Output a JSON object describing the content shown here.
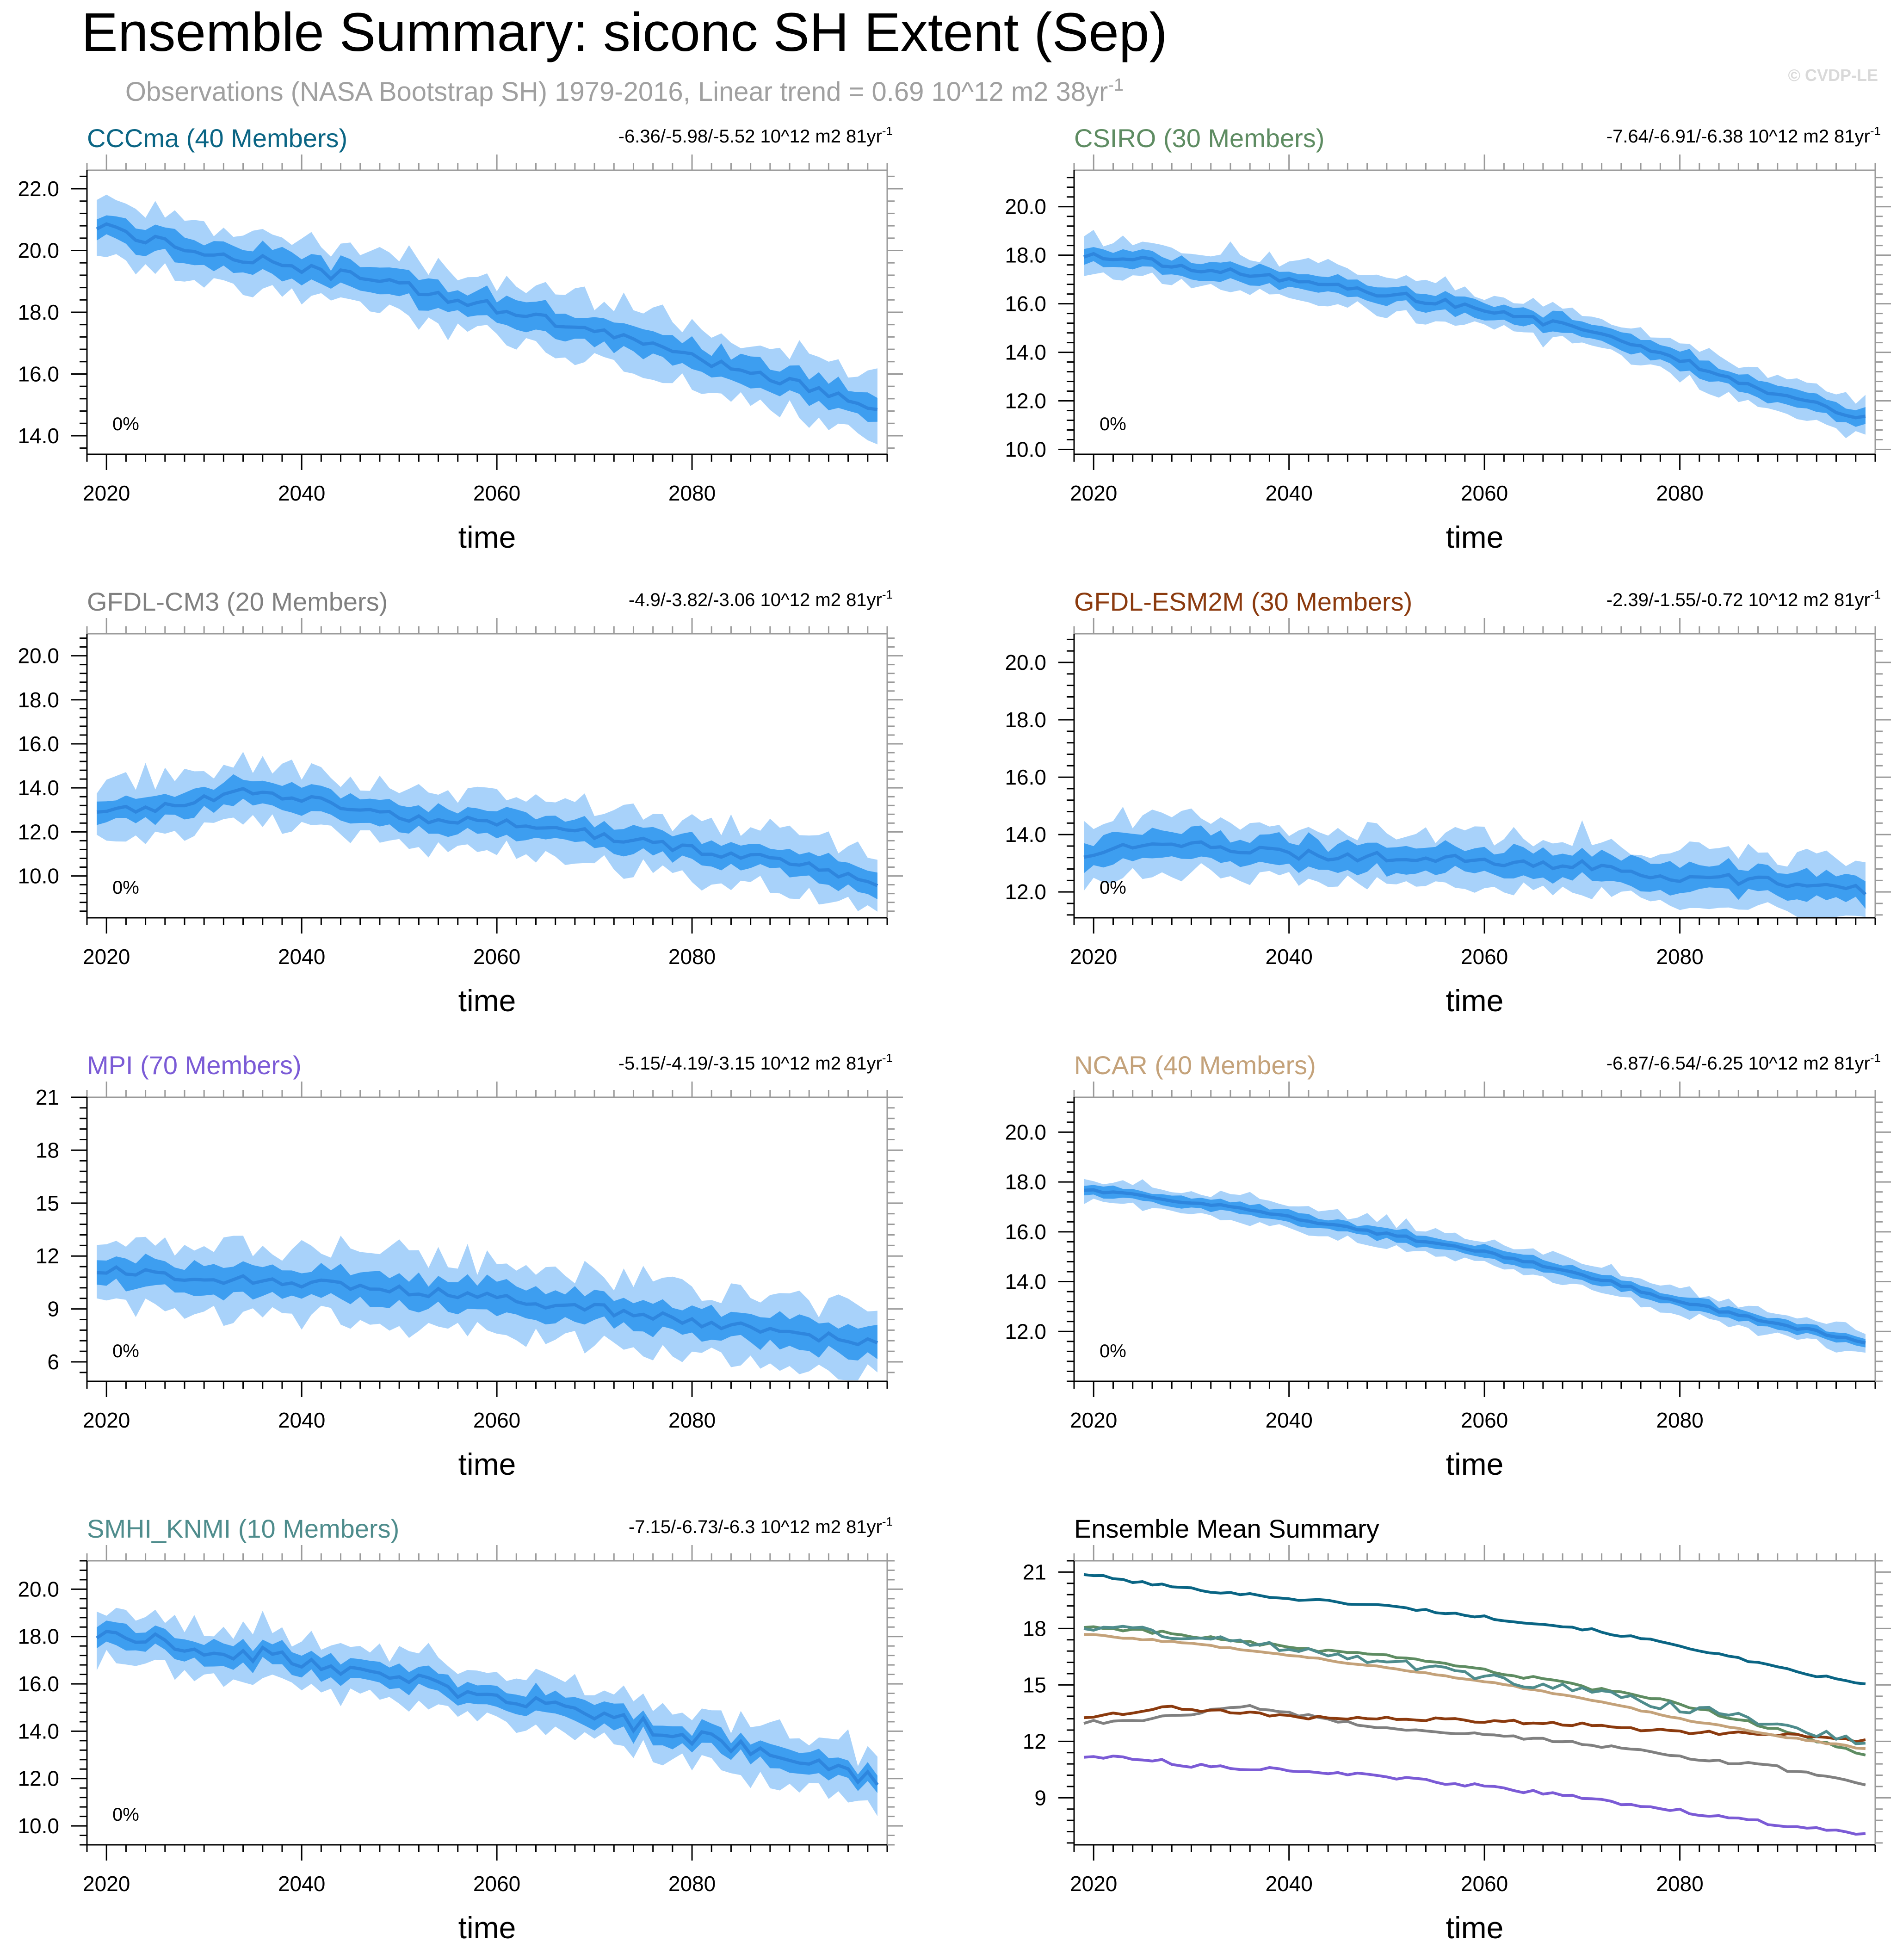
{
  "page": {
    "title": "Ensemble Summary: siconc SH Extent (Sep)",
    "subtitle": "Observations (NASA Bootstrap SH) 1979-2016, Linear trend = 0.69 10^12 m2 38yr",
    "subtitle_sup": "-1",
    "copyright": "© CVDP-LE"
  },
  "colors": {
    "band_outer": "#a8d2fa",
    "band_inner": "#3d9ef0",
    "mean_line": "#2e86de",
    "axis": "#000000",
    "frame": "#9a9a9a",
    "subtitle": "#a0a0a0"
  },
  "chart_data": [
    {
      "id": "cccma",
      "type": "area",
      "title": "CCCma (40 Members)",
      "title_color": "#0a6584",
      "trend": "-6.36/-5.98/-5.52 10^12 m2 81yr",
      "trend_sup": "-1",
      "pct": "0%",
      "xlabel": "time",
      "ylabel": "",
      "x_start": 2019,
      "x_end": 2099,
      "xlim": [
        2018,
        2100
      ],
      "xticks": [
        2020,
        2040,
        2060,
        2080
      ],
      "ylim": [
        13.4,
        22.6
      ],
      "yticks": [
        14,
        16,
        18,
        20,
        22
      ],
      "ytick_labels": [
        "14.0",
        "16.0",
        "18.0",
        "20.0",
        "22.0"
      ],
      "knots": [
        [
          2019,
          20.8
        ],
        [
          2024,
          20.4
        ],
        [
          2030,
          20.0
        ],
        [
          2040,
          19.4
        ],
        [
          2050,
          18.9
        ],
        [
          2060,
          18.1
        ],
        [
          2070,
          17.3
        ],
        [
          2080,
          16.6
        ],
        [
          2090,
          15.7
        ],
        [
          2099,
          14.9
        ]
      ],
      "inner": 0.42,
      "outer": 0.95,
      "noise": 0.2,
      "seed": 11
    },
    {
      "id": "csiro",
      "type": "area",
      "title": "CSIRO (30 Members)",
      "title_color": "#5e8c62",
      "trend": "-7.64/-6.91/-6.38 10^12 m2 81yr",
      "trend_sup": "-1",
      "pct": "0%",
      "xlabel": "time",
      "ylabel": "",
      "x_start": 2019,
      "x_end": 2099,
      "xlim": [
        2018,
        2100
      ],
      "xticks": [
        2020,
        2040,
        2060,
        2080
      ],
      "ylim": [
        9.8,
        21.5
      ],
      "yticks": [
        10,
        12,
        14,
        16,
        18,
        20
      ],
      "ytick_labels": [
        "10.0",
        "12.0",
        "14.0",
        "16.0",
        "18.0",
        "20.0"
      ],
      "knots": [
        [
          2019,
          18.0
        ],
        [
          2025,
          17.8
        ],
        [
          2030,
          17.5
        ],
        [
          2040,
          17.0
        ],
        [
          2050,
          16.4
        ],
        [
          2060,
          15.8
        ],
        [
          2070,
          14.9
        ],
        [
          2080,
          13.7
        ],
        [
          2090,
          12.3
        ],
        [
          2099,
          11.3
        ]
      ],
      "inner": 0.35,
      "outer": 0.75,
      "noise": 0.15,
      "seed": 23
    },
    {
      "id": "gfdl-cm3",
      "type": "area",
      "title": "GFDL-CM3 (20 Members)",
      "title_color": "#808080",
      "trend": "-4.9/-3.82/-3.06 10^12 m2 81yr",
      "trend_sup": "-1",
      "pct": "0%",
      "xlabel": "time",
      "ylabel": "",
      "x_start": 2019,
      "x_end": 2099,
      "xlim": [
        2018,
        2100
      ],
      "xticks": [
        2020,
        2040,
        2060,
        2080
      ],
      "ylim": [
        8.1,
        21.0
      ],
      "yticks": [
        10,
        12,
        14,
        16,
        18,
        20
      ],
      "ytick_labels": [
        "10.0",
        "12.0",
        "14.0",
        "16.0",
        "18.0",
        "20.0"
      ],
      "knots": [
        [
          2019,
          13.0
        ],
        [
          2025,
          13.1
        ],
        [
          2030,
          13.5
        ],
        [
          2035,
          13.9
        ],
        [
          2040,
          13.5
        ],
        [
          2050,
          12.7
        ],
        [
          2060,
          12.4
        ],
        [
          2070,
          11.9
        ],
        [
          2080,
          11.2
        ],
        [
          2090,
          10.6
        ],
        [
          2099,
          9.7
        ]
      ],
      "inner": 0.55,
      "outer": 1.3,
      "noise": 0.2,
      "seed": 37
    },
    {
      "id": "gfdl-esm2m",
      "type": "area",
      "title": "GFDL-ESM2M (30 Members)",
      "title_color": "#8b3a0e",
      "trend": "-2.39/-1.55/-0.72 10^12 m2 81yr",
      "trend_sup": "-1",
      "pct": "0%",
      "xlabel": "time",
      "ylabel": "",
      "x_start": 2019,
      "x_end": 2099,
      "xlim": [
        2018,
        2100
      ],
      "xticks": [
        2020,
        2040,
        2060,
        2080
      ],
      "ylim": [
        11.1,
        21.0
      ],
      "yticks": [
        12,
        14,
        16,
        18,
        20
      ],
      "ytick_labels": [
        "12.0",
        "14.0",
        "16.0",
        "18.0",
        "20.0"
      ],
      "knots": [
        [
          2019,
          13.3
        ],
        [
          2028,
          13.8
        ],
        [
          2040,
          13.3
        ],
        [
          2050,
          13.2
        ],
        [
          2060,
          13.1
        ],
        [
          2070,
          12.9
        ],
        [
          2080,
          12.5
        ],
        [
          2090,
          12.4
        ],
        [
          2099,
          12.0
        ]
      ],
      "inner": 0.45,
      "outer": 0.95,
      "noise": 0.18,
      "seed": 41
    },
    {
      "id": "mpi",
      "type": "area",
      "title": "MPI (70 Members)",
      "title_color": "#7b5bd6",
      "trend": "-5.15/-4.19/-3.15 10^12 m2 81yr",
      "trend_sup": "-1",
      "pct": "0%",
      "xlabel": "time",
      "ylabel": "",
      "x_start": 2019,
      "x_end": 2099,
      "xlim": [
        2018,
        2100
      ],
      "xticks": [
        2020,
        2040,
        2060,
        2080
      ],
      "ylim": [
        4.9,
        21.0
      ],
      "yticks": [
        6,
        9,
        12,
        15,
        18,
        21
      ],
      "ytick_labels": [
        "6",
        "9",
        "12",
        "15",
        "18",
        "21"
      ],
      "knots": [
        [
          2019,
          11.2
        ],
        [
          2025,
          11.1
        ],
        [
          2030,
          10.7
        ],
        [
          2040,
          10.5
        ],
        [
          2050,
          10.1
        ],
        [
          2060,
          9.6
        ],
        [
          2070,
          9.0
        ],
        [
          2080,
          8.3
        ],
        [
          2090,
          7.6
        ],
        [
          2099,
          7.0
        ]
      ],
      "inner": 0.85,
      "outer": 1.9,
      "noise": 0.3,
      "seed": 53
    },
    {
      "id": "ncar",
      "type": "area",
      "title": "NCAR (40 Members)",
      "title_color": "#c4a27a",
      "trend": "-6.87/-6.54/-6.25 10^12 m2 81yr",
      "trend_sup": "-1",
      "pct": "0%",
      "xlabel": "time",
      "ylabel": "",
      "x_start": 2019,
      "x_end": 2099,
      "xlim": [
        2018,
        2100
      ],
      "xticks": [
        2020,
        2040,
        2060,
        2080
      ],
      "ylim": [
        10.0,
        21.4
      ],
      "yticks": [
        12,
        14,
        16,
        18,
        20
      ],
      "ytick_labels": [
        "12.0",
        "14.0",
        "16.0",
        "18.0",
        "20.0"
      ],
      "knots": [
        [
          2019,
          17.7
        ],
        [
          2030,
          17.2
        ],
        [
          2040,
          16.6
        ],
        [
          2050,
          15.9
        ],
        [
          2060,
          15.2
        ],
        [
          2070,
          14.3
        ],
        [
          2080,
          13.2
        ],
        [
          2090,
          12.3
        ],
        [
          2099,
          11.6
        ]
      ],
      "inner": 0.22,
      "outer": 0.5,
      "noise": 0.07,
      "seed": 67
    },
    {
      "id": "smhi-knmi",
      "type": "area",
      "title": "SMHI_KNMI (10 Members)",
      "title_color": "#4e8c8c",
      "trend": "-7.15/-6.73/-6.3 10^12 m2 81yr",
      "trend_sup": "-1",
      "pct": "0%",
      "xlabel": "time",
      "ylabel": "",
      "x_start": 2019,
      "x_end": 2099,
      "xlim": [
        2018,
        2100
      ],
      "xticks": [
        2020,
        2040,
        2060,
        2080
      ],
      "ylim": [
        9.2,
        21.2
      ],
      "yticks": [
        10,
        12,
        14,
        16,
        18,
        20
      ],
      "ytick_labels": [
        "10.0",
        "12.0",
        "14.0",
        "16.0",
        "18.0",
        "20.0"
      ],
      "knots": [
        [
          2019,
          18.1
        ],
        [
          2024,
          18.0
        ],
        [
          2030,
          17.5
        ],
        [
          2040,
          17.0
        ],
        [
          2050,
          16.3
        ],
        [
          2060,
          15.4
        ],
        [
          2070,
          14.7
        ],
        [
          2080,
          13.8
        ],
        [
          2090,
          13.0
        ],
        [
          2099,
          11.8
        ]
      ],
      "inner": 0.45,
      "outer": 1.1,
      "noise": 0.35,
      "seed": 79
    },
    {
      "id": "summary",
      "type": "line",
      "title": "Ensemble Mean Summary",
      "title_color": "#000000",
      "xlabel": "time",
      "ylabel": "",
      "x_start": 2019,
      "x_end": 2099,
      "xlim": [
        2018,
        2100
      ],
      "xticks": [
        2020,
        2040,
        2060,
        2080
      ],
      "ylim": [
        6.5,
        21.6
      ],
      "yticks": [
        9,
        12,
        15,
        18,
        21
      ],
      "ytick_labels": [
        "9",
        "12",
        "15",
        "18",
        "21"
      ],
      "series": [
        {
          "name": "CCCma",
          "color": "#0a6584",
          "knots": [
            [
              2019,
              20.9
            ],
            [
              2024,
              20.5
            ],
            [
              2030,
              20.1
            ],
            [
              2040,
              19.6
            ],
            [
              2050,
              19.2
            ],
            [
              2060,
              18.6
            ],
            [
              2070,
              18.0
            ],
            [
              2080,
              17.1
            ],
            [
              2090,
              15.9
            ],
            [
              2099,
              15.0
            ]
          ],
          "noise": 0.08,
          "seed": 101
        },
        {
          "name": "CSIRO",
          "color": "#5e8c62",
          "knots": [
            [
              2019,
              18.1
            ],
            [
              2025,
              17.9
            ],
            [
              2030,
              17.6
            ],
            [
              2040,
              17.0
            ],
            [
              2050,
              16.5
            ],
            [
              2060,
              15.8
            ],
            [
              2070,
              14.9
            ],
            [
              2080,
              14.0
            ],
            [
              2090,
              12.6
            ],
            [
              2099,
              11.3
            ]
          ],
          "noise": 0.1,
          "seed": 103
        },
        {
          "name": "GFDL-CM3",
          "color": "#808080",
          "knots": [
            [
              2019,
              13.0
            ],
            [
              2025,
              13.1
            ],
            [
              2030,
              13.5
            ],
            [
              2035,
              13.9
            ],
            [
              2040,
              13.5
            ],
            [
              2050,
              12.7
            ],
            [
              2060,
              12.4
            ],
            [
              2070,
              11.9
            ],
            [
              2080,
              11.2
            ],
            [
              2090,
              10.6
            ],
            [
              2099,
              9.7
            ]
          ],
          "noise": 0.1,
          "seed": 107
        },
        {
          "name": "GFDL-ESM2M",
          "color": "#8b3a0e",
          "knots": [
            [
              2019,
              13.3
            ],
            [
              2028,
              13.8
            ],
            [
              2040,
              13.3
            ],
            [
              2050,
              13.2
            ],
            [
              2060,
              13.1
            ],
            [
              2070,
              12.9
            ],
            [
              2080,
              12.5
            ],
            [
              2090,
              12.4
            ],
            [
              2099,
              12.0
            ]
          ],
          "noise": 0.1,
          "seed": 109
        },
        {
          "name": "MPI",
          "color": "#7b5bd6",
          "knots": [
            [
              2019,
              11.2
            ],
            [
              2025,
              11.1
            ],
            [
              2030,
              10.7
            ],
            [
              2040,
              10.5
            ],
            [
              2050,
              10.1
            ],
            [
              2060,
              9.6
            ],
            [
              2070,
              9.0
            ],
            [
              2080,
              8.3
            ],
            [
              2090,
              7.6
            ],
            [
              2099,
              7.0
            ]
          ],
          "noise": 0.1,
          "seed": 113
        },
        {
          "name": "NCAR",
          "color": "#c4a27a",
          "knots": [
            [
              2019,
              17.7
            ],
            [
              2030,
              17.2
            ],
            [
              2040,
              16.6
            ],
            [
              2050,
              15.9
            ],
            [
              2060,
              15.2
            ],
            [
              2070,
              14.3
            ],
            [
              2080,
              13.2
            ],
            [
              2090,
              12.3
            ],
            [
              2099,
              11.6
            ]
          ],
          "noise": 0.04,
          "seed": 127
        },
        {
          "name": "SMHI_KNMI",
          "color": "#4e8c8c",
          "knots": [
            [
              2019,
              18.1
            ],
            [
              2024,
              18.0
            ],
            [
              2030,
              17.5
            ],
            [
              2040,
              17.0
            ],
            [
              2050,
              16.3
            ],
            [
              2060,
              15.4
            ],
            [
              2070,
              14.7
            ],
            [
              2080,
              13.8
            ],
            [
              2090,
              13.0
            ],
            [
              2099,
              11.8
            ]
          ],
          "noise": 0.25,
          "seed": 131
        }
      ]
    }
  ]
}
